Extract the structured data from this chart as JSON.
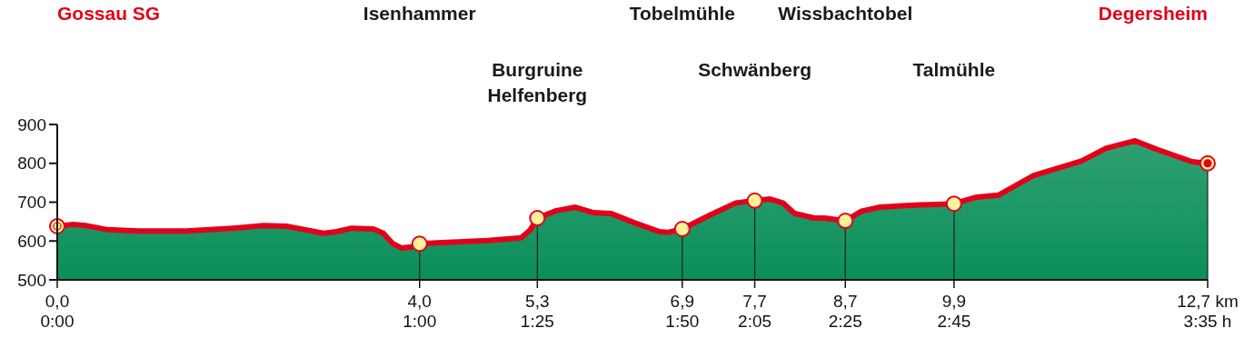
{
  "chart_data": {
    "type": "area",
    "xlim": [
      0,
      12.7
    ],
    "xticks": [
      {
        "value": 0,
        "label": "0,0"
      },
      {
        "value": 4.0,
        "label": "4,0"
      },
      {
        "value": 5.3,
        "label": "5,3"
      },
      {
        "value": 6.9,
        "label": "6,9"
      },
      {
        "value": 7.7,
        "label": "7,7"
      },
      {
        "value": 8.7,
        "label": "8,7"
      },
      {
        "value": 9.9,
        "label": "9,9"
      },
      {
        "value": 12.7,
        "label": "12,7 km"
      }
    ],
    "ylim": [
      500,
      900
    ],
    "yticks": [
      500,
      600,
      700,
      800,
      900
    ],
    "grid": false,
    "series": [
      {
        "color": "#0b8f5a",
        "x": [
          0,
          0.18,
          0.31,
          0.56,
          0.9,
          1.42,
          1.94,
          2.28,
          2.53,
          2.74,
          2.94,
          3.08,
          3.25,
          3.49,
          3.6,
          3.7,
          3.8,
          3.91,
          4.0,
          4.24,
          4.75,
          5.12,
          5.22,
          5.3,
          5.51,
          5.72,
          5.92,
          6.11,
          6.37,
          6.65,
          6.74,
          6.9,
          7.2,
          7.49,
          7.7,
          7.87,
          8.01,
          8.14,
          8.36,
          8.47,
          8.7,
          8.88,
          9.08,
          9.41,
          9.9,
          10.15,
          10.39,
          10.78,
          11.31,
          11.58,
          11.9,
          12.15,
          12.53,
          12.7
        ],
        "values": [
          638,
          643,
          640,
          629,
          626,
          626,
          633,
          640,
          638,
          629,
          620,
          624,
          633,
          631,
          620,
          594,
          582,
          585,
          593,
          596,
          601,
          608,
          628,
          659,
          678,
          687,
          673,
          671,
          647,
          624,
          622,
          631,
          666,
          698,
          704,
          708,
          698,
          671,
          659,
          659,
          652,
          677,
          687,
          692,
          696,
          713,
          718,
          769,
          806,
          839,
          858,
          835,
          804,
          800
        ]
      },
      {
        "type": "lollipop",
        "color": "#fff09a",
        "x": [
          0,
          4.0,
          5.3,
          6.9,
          7.7,
          8.7,
          9.9,
          12.7
        ],
        "values": [
          638,
          593,
          659,
          631,
          704,
          652,
          696,
          800
        ]
      }
    ],
    "annotations": [
      "Gossau SG",
      "Isenhammer",
      "Burgruine Helfenberg",
      "Tobelmühle",
      "Schwänberg",
      "Wissbachtobel",
      "Talmühle",
      "Degersheim",
      "0:00",
      "1:00",
      "1:25",
      "1:50",
      "2:05",
      "2:25",
      "2:45",
      "3:35 h"
    ]
  }
}
